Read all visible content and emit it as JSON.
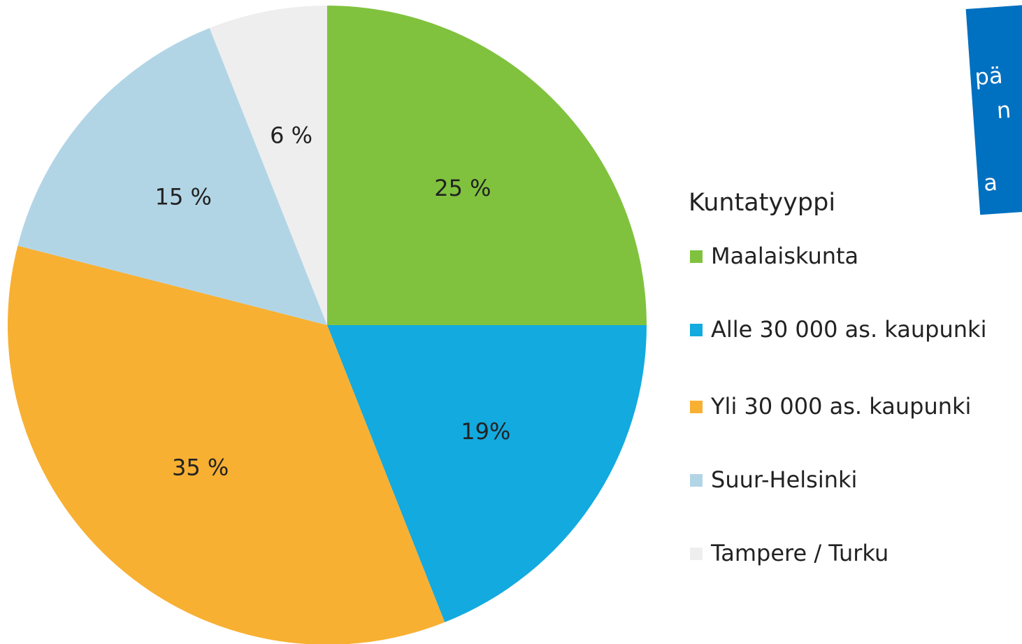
{
  "chart_data": {
    "type": "pie",
    "legend_title": "Kuntatyyppi",
    "categories": [
      "Maalaiskunta",
      "Alle 30 000 as. kaupunki",
      "Yli 30 000 as. kaupunki",
      "Suur-Helsinki",
      "Tampere / Turku"
    ],
    "values": [
      25,
      19,
      35,
      15,
      6
    ],
    "value_labels": [
      "25 %",
      "19%",
      "35 %",
      "15 %",
      "6 %"
    ],
    "colors": [
      "#80c23e",
      "#12aadf",
      "#f8b032",
      "#b2d5e6",
      "#eeeeee"
    ],
    "annotations": [
      "pä",
      "n",
      "a"
    ]
  }
}
